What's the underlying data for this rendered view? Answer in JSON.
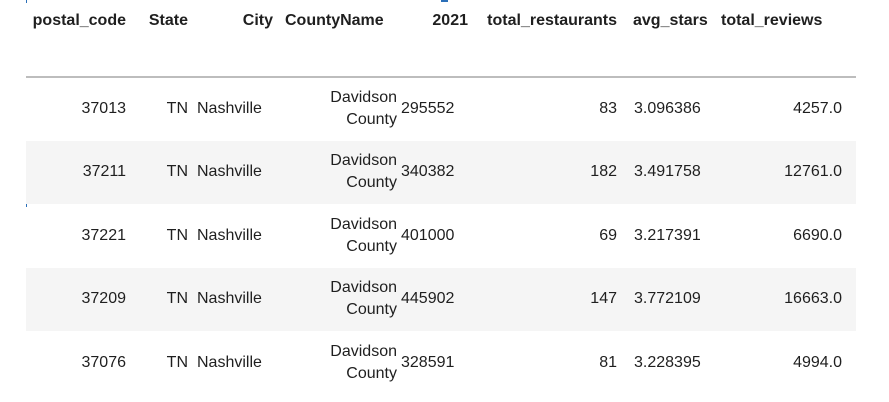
{
  "table": {
    "columns": [
      "postal_code",
      "State",
      "City",
      "CountyName",
      "2021",
      "total_restaurants",
      "avg_stars",
      "total_reviews"
    ],
    "rows": [
      {
        "postal_code": "37013",
        "State": "TN",
        "City": "Nashville",
        "CountyName": "Davidson County",
        "2021": "295552",
        "total_restaurants": "83",
        "avg_stars": "3.096386",
        "total_reviews": "4257.0"
      },
      {
        "postal_code": "37211",
        "State": "TN",
        "City": "Nashville",
        "CountyName": "Davidson County",
        "2021": "340382",
        "total_restaurants": "182",
        "avg_stars": "3.491758",
        "total_reviews": "12761.0"
      },
      {
        "postal_code": "37221",
        "State": "TN",
        "City": "Nashville",
        "CountyName": "Davidson County",
        "2021": "401000",
        "total_restaurants": "69",
        "avg_stars": "3.217391",
        "total_reviews": "6690.0"
      },
      {
        "postal_code": "37209",
        "State": "TN",
        "City": "Nashville",
        "CountyName": "Davidson County",
        "2021": "445902",
        "total_restaurants": "147",
        "avg_stars": "3.772109",
        "total_reviews": "16663.0"
      },
      {
        "postal_code": "37076",
        "State": "TN",
        "City": "Nashville",
        "CountyName": "Davidson County",
        "2021": "328591",
        "total_restaurants": "81",
        "avg_stars": "3.228395",
        "total_reviews": "4994.0"
      }
    ]
  },
  "colors": {
    "header_rule": "#bdbdbd",
    "stripe": "#f5f5f5",
    "text": "#1f1f1f",
    "cell_marker": "#2b6fb8"
  }
}
